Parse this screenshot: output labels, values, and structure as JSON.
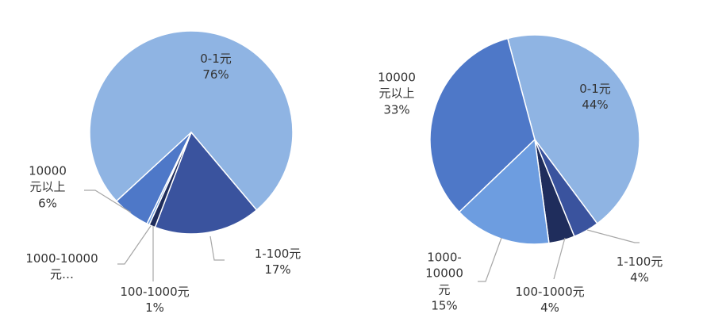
{
  "chart_data": [
    {
      "type": "pie",
      "categories": [
        "0-1元",
        "1-100元",
        "100-1000元",
        "1000-10000元…",
        "10000元以上"
      ],
      "values": [
        76,
        17,
        1,
        0.4,
        6
      ],
      "value_labels": [
        "76%",
        "17%",
        "1%",
        null,
        "6%"
      ],
      "colors": [
        "#8fb4e3",
        "#3a539e",
        "#1f2d5c",
        "#6d9de0",
        "#4e78c8"
      ],
      "startangle": 227.4,
      "direction": "clockwise"
    },
    {
      "type": "pie",
      "categories": [
        "0-1元",
        "1-100元",
        "100-1000元",
        "1000-10000元",
        "10000元以上"
      ],
      "values": [
        44,
        4,
        4,
        15,
        33
      ],
      "value_labels": [
        "44%",
        "4%",
        "4%",
        "15%",
        "33%"
      ],
      "colors": [
        "#8fb4e3",
        "#3a539e",
        "#1f2d5c",
        "#6d9de0",
        "#4e78c8"
      ],
      "startangle": 345,
      "direction": "clockwise"
    }
  ]
}
